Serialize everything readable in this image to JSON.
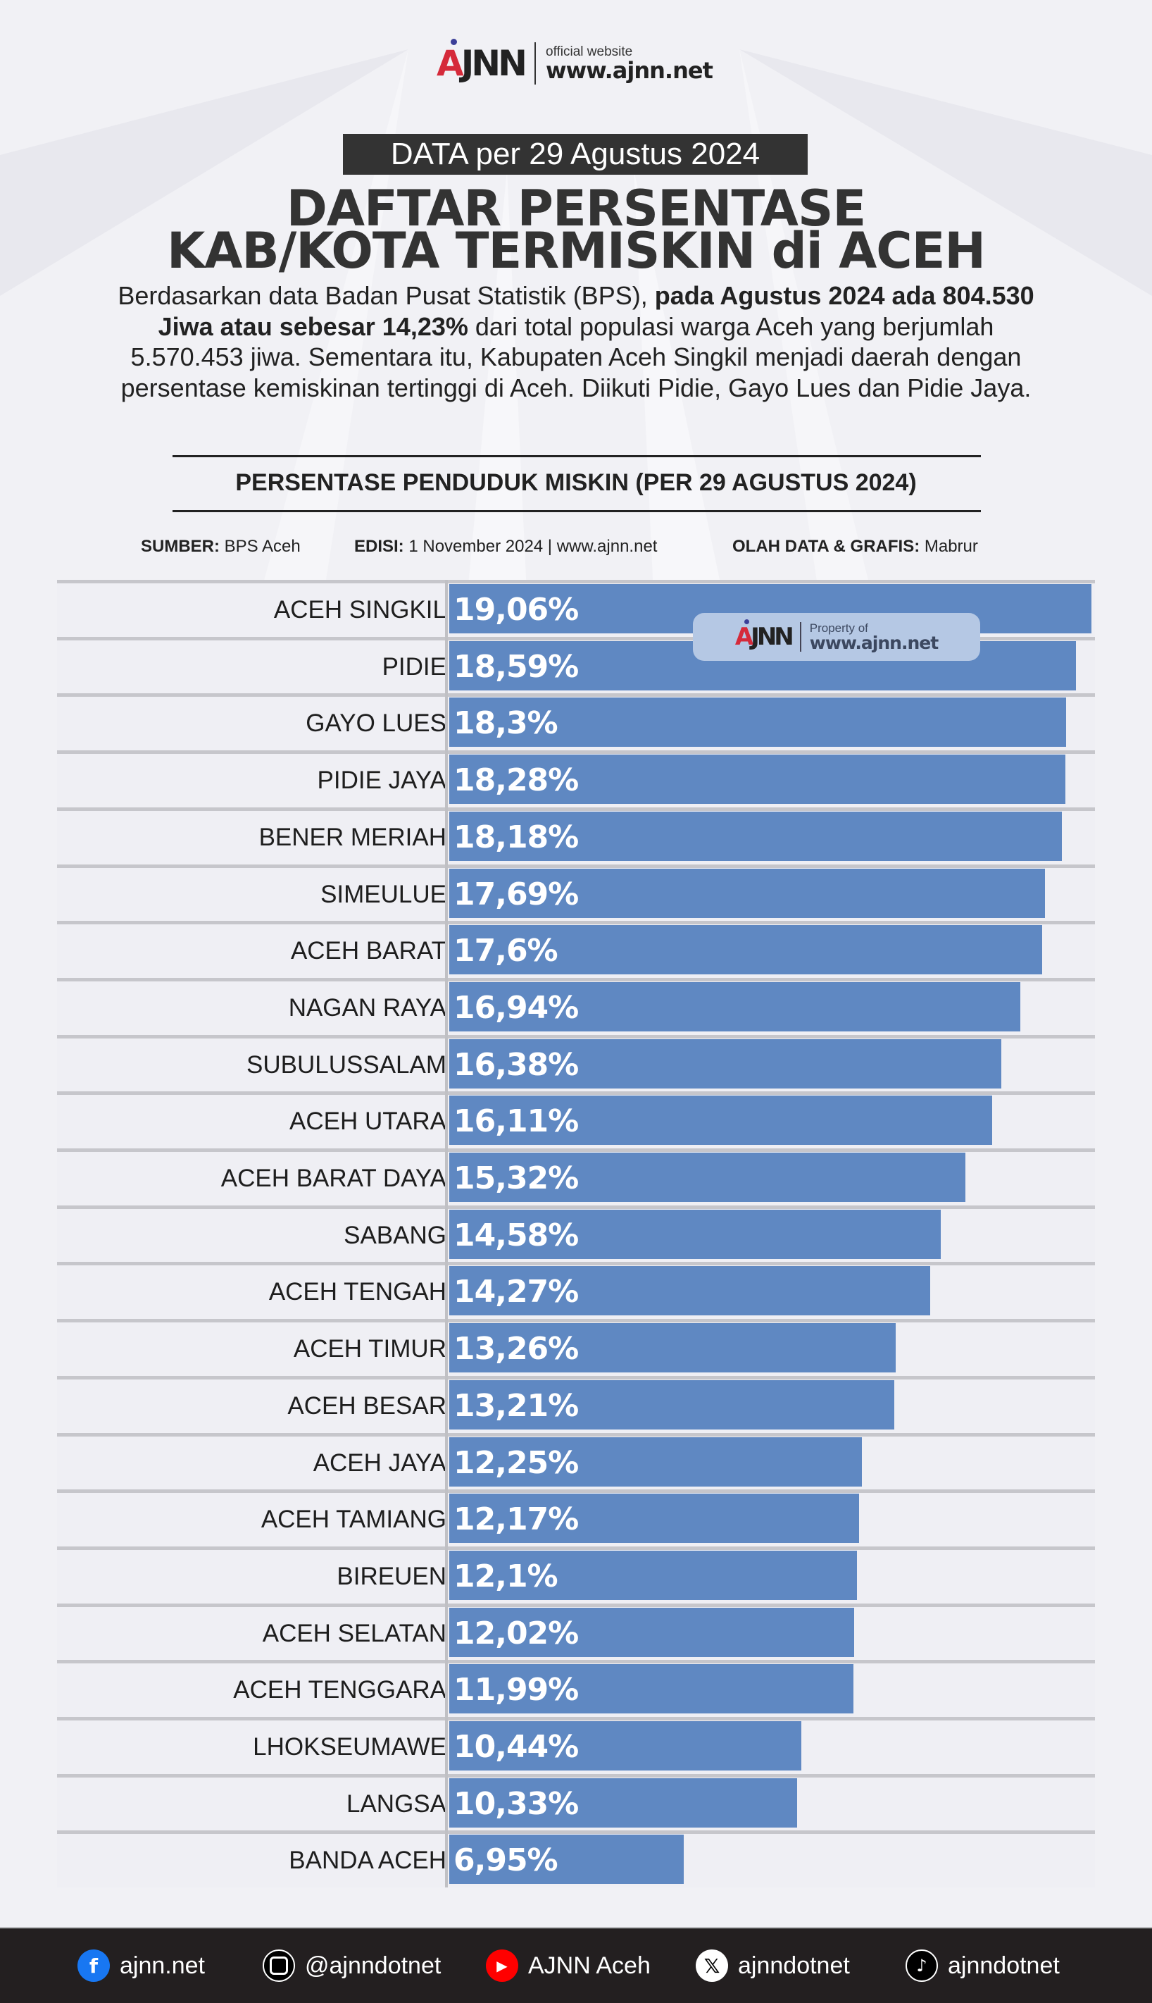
{
  "header": {
    "logo_text": "AJNN",
    "logo_caption": "official website",
    "logo_url": "www.ajnn.net",
    "date_badge": "DATA per 29 Agustus 2024",
    "title_line1": "DAFTAR PERSENTASE",
    "title_line2": "KAB/KOTA TERMISKIN di ACEH",
    "paragraph": {
      "part1": "Berdasarkan data Badan Pusat Statistik (BPS), ",
      "bold": "pada Agustus 2024 ada 804.530 Jiwa atau sebesar 14,23%",
      "part2": " dari total populasi warga Aceh yang berjumlah 5.570.453 jiwa. Sementara itu, Kabupaten Aceh Singkil menjadi daerah dengan persentase kemiskinan tertinggi di Aceh. Diikuti Pidie, Gayo Lues dan Pidie Jaya."
    }
  },
  "source": {
    "sumber_label": "SUMBER:",
    "sumber_value": " BPS Aceh",
    "edisi_label": "EDISI:",
    "edisi_value": " 1 November 2024 | www.ajnn.net",
    "olah_label": "OLAH DATA & GRAFIS:",
    "olah_value": " Mabrur"
  },
  "watermark": {
    "logo_text": "AJNN",
    "caption": "Property of",
    "url": "www.ajnn.net"
  },
  "colors": {
    "bar": "#5f88c2",
    "background": "#f1f1f5",
    "footer": "#231f20"
  },
  "chart_data": {
    "type": "bar",
    "orientation": "horizontal",
    "title": "PERSENTASE PENDUDUK MISKIN (PER 29 AGUSTUS 2024)",
    "categories": [
      "ACEH SINGKIL",
      "PIDIE",
      "GAYO LUES",
      "PIDIE JAYA",
      "BENER MERIAH",
      "SIMEULUE",
      "ACEH BARAT",
      "NAGAN RAYA",
      "SUBULUSSALAM",
      "ACEH UTARA",
      "ACEH BARAT DAYA",
      "SABANG",
      "ACEH TENGAH",
      "ACEH TIMUR",
      "ACEH BESAR",
      "ACEH JAYA",
      "ACEH TAMIANG",
      "BIREUEN",
      "ACEH SELATAN",
      "ACEH TENGGARA",
      "LHOKSEUMAWE",
      "LANGSA",
      "BANDA ACEH"
    ],
    "values": [
      19.06,
      18.59,
      18.3,
      18.28,
      18.18,
      17.69,
      17.6,
      16.94,
      16.38,
      16.11,
      15.32,
      14.58,
      14.27,
      13.26,
      13.21,
      12.25,
      12.17,
      12.1,
      12.02,
      11.99,
      10.44,
      10.33,
      6.95
    ],
    "labels": [
      "19,06%",
      "18,59%",
      "18,3%",
      "18,28%",
      "18,18%",
      "17,69%",
      "17,6%",
      "16,94%",
      "16,38%",
      "16,11%",
      "15,32%",
      "14,58%",
      "14,27%",
      "13,26%",
      "13,21%",
      "12,25%",
      "12,17%",
      "12,1%",
      "12,02%",
      "11,99%",
      "10,44%",
      "10,33%",
      "6,95%"
    ],
    "xlim": [
      0,
      19.06
    ],
    "grid": false,
    "legend": "none"
  },
  "footer": {
    "items": [
      {
        "icon": "facebook-icon",
        "label": "ajnn.net",
        "color": "#1877f2"
      },
      {
        "icon": "instagram-icon",
        "label": "@ajnndotnet",
        "color": "#000000"
      },
      {
        "icon": "youtube-icon",
        "label": "AJNN Aceh",
        "color": "#ff0000"
      },
      {
        "icon": "x-icon",
        "label": "ajnndotnet",
        "color": "#ffffff"
      },
      {
        "icon": "tiktok-icon",
        "label": "ajnndotnet",
        "color": "#000000"
      }
    ]
  }
}
